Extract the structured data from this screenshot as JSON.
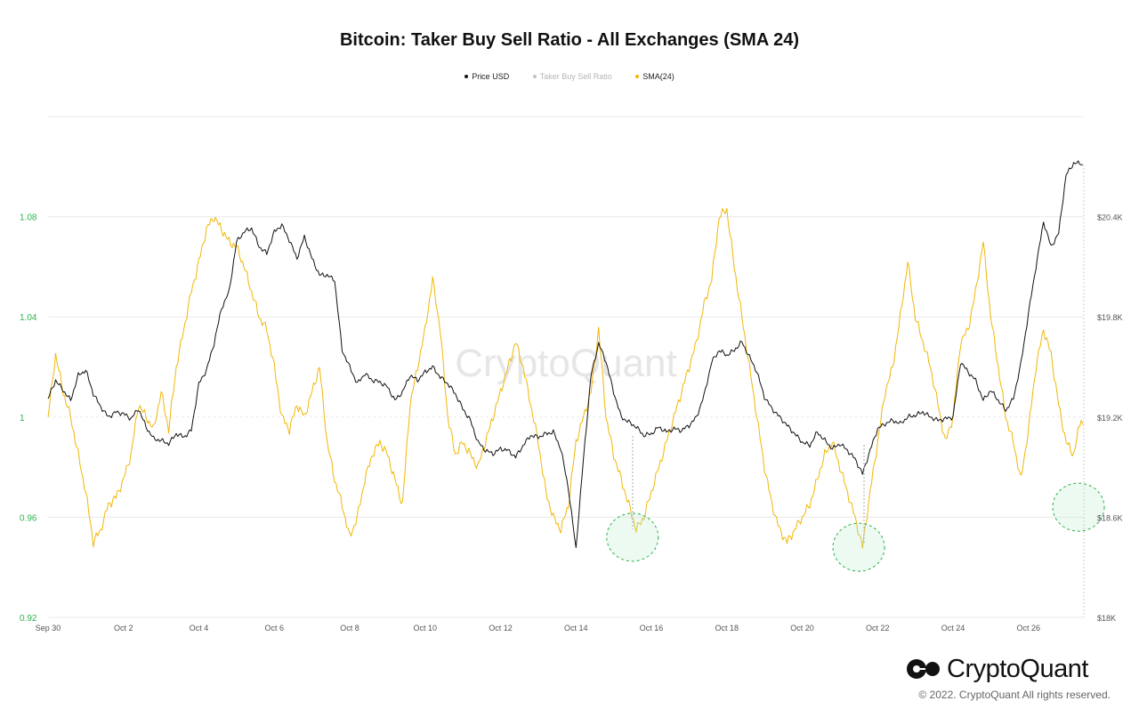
{
  "chart_data": {
    "type": "line",
    "title": "Bitcoin: Taker Buy Sell Ratio - All Exchanges (SMA 24)",
    "x_labels": [
      "Sep 30",
      "Oct 2",
      "Oct 4",
      "Oct 6",
      "Oct 8",
      "Oct 10",
      "Oct 12",
      "Oct 14",
      "Oct 16",
      "Oct 18",
      "Oct 20",
      "Oct 22",
      "Oct 24",
      "Oct 26"
    ],
    "left_axis": {
      "ticks": [
        "0.92",
        "0.96",
        "1",
        "1.04",
        "1.08"
      ],
      "range": [
        0.92,
        1.12
      ],
      "tick_color": "#2bb24c"
    },
    "right_axis": {
      "ticks": [
        "$18K",
        "$18.6K",
        "$19.2K",
        "$19.8K",
        "$20.4K"
      ],
      "range": [
        18000,
        21000
      ]
    },
    "x_range_days": [
      0,
      27.4
    ],
    "legend_position": "top-center",
    "grid": true,
    "series": [
      {
        "name": "Price USD",
        "color": "#111111",
        "axis": "right",
        "points": [
          [
            0,
            19310
          ],
          [
            0.2,
            19420
          ],
          [
            0.4,
            19360
          ],
          [
            0.6,
            19300
          ],
          [
            0.8,
            19450
          ],
          [
            1.0,
            19480
          ],
          [
            1.2,
            19340
          ],
          [
            1.4,
            19260
          ],
          [
            1.6,
            19200
          ],
          [
            1.8,
            19230
          ],
          [
            2.0,
            19220
          ],
          [
            2.2,
            19190
          ],
          [
            2.4,
            19250
          ],
          [
            2.6,
            19140
          ],
          [
            2.8,
            19070
          ],
          [
            3.0,
            19060
          ],
          [
            3.2,
            19040
          ],
          [
            3.4,
            19100
          ],
          [
            3.6,
            19080
          ],
          [
            3.8,
            19120
          ],
          [
            4.0,
            19400
          ],
          [
            4.2,
            19480
          ],
          [
            4.4,
            19640
          ],
          [
            4.6,
            19850
          ],
          [
            4.8,
            19950
          ],
          [
            5.0,
            20250
          ],
          [
            5.2,
            20310
          ],
          [
            5.4,
            20330
          ],
          [
            5.6,
            20220
          ],
          [
            5.8,
            20180
          ],
          [
            6.0,
            20310
          ],
          [
            6.2,
            20350
          ],
          [
            6.4,
            20260
          ],
          [
            6.6,
            20150
          ],
          [
            6.8,
            20280
          ],
          [
            7.0,
            20150
          ],
          [
            7.2,
            20050
          ],
          [
            7.4,
            20050
          ],
          [
            7.6,
            20020
          ],
          [
            7.8,
            19600
          ],
          [
            8.0,
            19500
          ],
          [
            8.2,
            19400
          ],
          [
            8.4,
            19460
          ],
          [
            8.6,
            19420
          ],
          [
            8.8,
            19410
          ],
          [
            9.0,
            19380
          ],
          [
            9.2,
            19300
          ],
          [
            9.4,
            19350
          ],
          [
            9.6,
            19450
          ],
          [
            9.8,
            19420
          ],
          [
            10.0,
            19470
          ],
          [
            10.2,
            19500
          ],
          [
            10.4,
            19440
          ],
          [
            10.6,
            19400
          ],
          [
            10.8,
            19340
          ],
          [
            11.0,
            19250
          ],
          [
            11.2,
            19180
          ],
          [
            11.4,
            19050
          ],
          [
            11.6,
            19000
          ],
          [
            11.8,
            18980
          ],
          [
            12.0,
            19010
          ],
          [
            12.2,
            19000
          ],
          [
            12.4,
            18960
          ],
          [
            12.6,
            19030
          ],
          [
            12.8,
            19090
          ],
          [
            13.0,
            19080
          ],
          [
            13.2,
            19100
          ],
          [
            13.4,
            19110
          ],
          [
            13.6,
            19010
          ],
          [
            13.8,
            18770
          ],
          [
            14.0,
            18410
          ],
          [
            14.2,
            18950
          ],
          [
            14.4,
            19450
          ],
          [
            14.6,
            19640
          ],
          [
            14.8,
            19530
          ],
          [
            15.0,
            19350
          ],
          [
            15.2,
            19200
          ],
          [
            15.4,
            19170
          ],
          [
            15.6,
            19140
          ],
          [
            15.8,
            19090
          ],
          [
            16.0,
            19100
          ],
          [
            16.2,
            19140
          ],
          [
            16.4,
            19110
          ],
          [
            16.6,
            19130
          ],
          [
            16.8,
            19120
          ],
          [
            17.0,
            19150
          ],
          [
            17.2,
            19200
          ],
          [
            17.4,
            19330
          ],
          [
            17.6,
            19530
          ],
          [
            17.8,
            19600
          ],
          [
            18.0,
            19570
          ],
          [
            18.2,
            19600
          ],
          [
            18.4,
            19650
          ],
          [
            18.6,
            19560
          ],
          [
            18.8,
            19470
          ],
          [
            19.0,
            19320
          ],
          [
            19.2,
            19250
          ],
          [
            19.4,
            19200
          ],
          [
            19.6,
            19150
          ],
          [
            19.8,
            19100
          ],
          [
            20.0,
            19050
          ],
          [
            20.2,
            19030
          ],
          [
            20.4,
            19110
          ],
          [
            20.6,
            19060
          ],
          [
            20.8,
            19010
          ],
          [
            21.0,
            19040
          ],
          [
            21.2,
            19000
          ],
          [
            21.4,
            18950
          ],
          [
            21.6,
            18860
          ],
          [
            21.8,
            19000
          ],
          [
            22.0,
            19130
          ],
          [
            22.2,
            19160
          ],
          [
            22.4,
            19180
          ],
          [
            22.6,
            19160
          ],
          [
            22.8,
            19200
          ],
          [
            23.0,
            19210
          ],
          [
            23.2,
            19230
          ],
          [
            23.4,
            19200
          ],
          [
            23.6,
            19180
          ],
          [
            23.8,
            19190
          ],
          [
            24.0,
            19200
          ],
          [
            24.2,
            19530
          ],
          [
            24.4,
            19470
          ],
          [
            24.6,
            19420
          ],
          [
            24.8,
            19300
          ],
          [
            25.0,
            19360
          ],
          [
            25.2,
            19300
          ],
          [
            25.4,
            19240
          ],
          [
            25.6,
            19310
          ],
          [
            25.8,
            19520
          ],
          [
            26.0,
            19820
          ],
          [
            26.2,
            20100
          ],
          [
            26.4,
            20370
          ],
          [
            26.6,
            20220
          ],
          [
            26.8,
            20300
          ],
          [
            27.0,
            20650
          ],
          [
            27.2,
            20720
          ],
          [
            27.4,
            20720
          ],
          [
            27.6,
            20660
          ],
          [
            27.8,
            20700
          ],
          [
            28.0,
            20730
          ],
          [
            28.2,
            20720
          ],
          [
            28.4,
            20680
          ],
          [
            28.6,
            20750
          ],
          [
            28.8,
            20700
          ],
          [
            29.0,
            20700
          ]
        ]
      },
      {
        "name": "Taker Buy Sell Ratio",
        "color": "#c4c4c4",
        "axis": "left",
        "points": []
      },
      {
        "name": "SMA(24)",
        "color": "#f2b705",
        "axis": "left",
        "points": [
          [
            0,
            1.0
          ],
          [
            0.2,
            1.025
          ],
          [
            0.4,
            1.01
          ],
          [
            0.6,
            1.0
          ],
          [
            0.8,
            0.985
          ],
          [
            1.0,
            0.97
          ],
          [
            1.2,
            0.95
          ],
          [
            1.4,
            0.955
          ],
          [
            1.6,
            0.965
          ],
          [
            1.8,
            0.968
          ],
          [
            2.0,
            0.975
          ],
          [
            2.2,
            0.985
          ],
          [
            2.4,
            1.005
          ],
          [
            2.6,
            1.0
          ],
          [
            2.8,
            0.995
          ],
          [
            3.0,
            1.01
          ],
          [
            3.2,
            0.995
          ],
          [
            3.4,
            1.02
          ],
          [
            3.6,
            1.035
          ],
          [
            3.8,
            1.05
          ],
          [
            4.0,
            1.062
          ],
          [
            4.2,
            1.075
          ],
          [
            4.4,
            1.08
          ],
          [
            4.6,
            1.075
          ],
          [
            4.8,
            1.07
          ],
          [
            5.0,
            1.068
          ],
          [
            5.2,
            1.06
          ],
          [
            5.4,
            1.05
          ],
          [
            5.6,
            1.04
          ],
          [
            5.8,
            1.035
          ],
          [
            6.0,
            1.02
          ],
          [
            6.2,
            1.0
          ],
          [
            6.4,
            0.995
          ],
          [
            6.6,
            1.005
          ],
          [
            6.8,
            1.0
          ],
          [
            7.0,
            1.01
          ],
          [
            7.2,
            1.02
          ],
          [
            7.4,
            0.99
          ],
          [
            7.6,
            0.975
          ],
          [
            7.8,
            0.965
          ],
          [
            8.0,
            0.952
          ],
          [
            8.2,
            0.96
          ],
          [
            8.4,
            0.975
          ],
          [
            8.6,
            0.985
          ],
          [
            8.8,
            0.99
          ],
          [
            9.0,
            0.985
          ],
          [
            9.2,
            0.975
          ],
          [
            9.4,
            0.965
          ],
          [
            9.6,
            1.005
          ],
          [
            9.8,
            1.02
          ],
          [
            10.0,
            1.035
          ],
          [
            10.2,
            1.055
          ],
          [
            10.4,
            1.035
          ],
          [
            10.6,
            1.0
          ],
          [
            10.8,
            0.985
          ],
          [
            11.0,
            0.99
          ],
          [
            11.2,
            0.985
          ],
          [
            11.4,
            0.98
          ],
          [
            11.6,
            0.99
          ],
          [
            11.8,
            1.0
          ],
          [
            12.0,
            1.01
          ],
          [
            12.2,
            1.02
          ],
          [
            12.4,
            1.03
          ],
          [
            12.6,
            1.02
          ],
          [
            12.8,
            1.005
          ],
          [
            13.0,
            0.99
          ],
          [
            13.2,
            0.97
          ],
          [
            13.4,
            0.96
          ],
          [
            13.6,
            0.955
          ],
          [
            13.8,
            0.965
          ],
          [
            14.0,
            0.99
          ],
          [
            14.2,
            1.0
          ],
          [
            14.4,
            1.01
          ],
          [
            14.6,
            1.035
          ],
          [
            14.8,
            1.0
          ],
          [
            15.0,
            0.985
          ],
          [
            15.2,
            0.975
          ],
          [
            15.4,
            0.965
          ],
          [
            15.6,
            0.955
          ],
          [
            15.8,
            0.96
          ],
          [
            16.0,
            0.97
          ],
          [
            16.2,
            0.98
          ],
          [
            16.4,
            0.99
          ],
          [
            16.6,
            1.0
          ],
          [
            16.8,
            1.01
          ],
          [
            17.0,
            1.02
          ],
          [
            17.2,
            1.03
          ],
          [
            17.4,
            1.045
          ],
          [
            17.6,
            1.055
          ],
          [
            17.8,
            1.08
          ],
          [
            18.0,
            1.083
          ],
          [
            18.2,
            1.06
          ],
          [
            18.4,
            1.04
          ],
          [
            18.6,
            1.02
          ],
          [
            18.8,
            1.0
          ],
          [
            19.0,
            0.98
          ],
          [
            19.2,
            0.965
          ],
          [
            19.4,
            0.955
          ],
          [
            19.6,
            0.95
          ],
          [
            19.8,
            0.955
          ],
          [
            20.0,
            0.96
          ],
          [
            20.2,
            0.965
          ],
          [
            20.4,
            0.975
          ],
          [
            20.6,
            0.985
          ],
          [
            20.8,
            0.99
          ],
          [
            21.0,
            0.98
          ],
          [
            21.2,
            0.97
          ],
          [
            21.4,
            0.96
          ],
          [
            21.6,
            0.948
          ],
          [
            21.8,
            0.97
          ],
          [
            22.0,
            0.99
          ],
          [
            22.2,
            1.01
          ],
          [
            22.4,
            1.02
          ],
          [
            22.6,
            1.04
          ],
          [
            22.8,
            1.062
          ],
          [
            23.0,
            1.04
          ],
          [
            23.2,
            1.03
          ],
          [
            23.4,
            1.02
          ],
          [
            23.6,
            1.005
          ],
          [
            23.8,
            0.99
          ],
          [
            24.0,
            1.0
          ],
          [
            24.2,
            1.03
          ],
          [
            24.4,
            1.035
          ],
          [
            24.6,
            1.05
          ],
          [
            24.8,
            1.07
          ],
          [
            25.0,
            1.04
          ],
          [
            25.2,
            1.02
          ],
          [
            25.4,
            1.0
          ],
          [
            25.6,
            0.99
          ],
          [
            25.8,
            0.975
          ],
          [
            26.0,
            0.995
          ],
          [
            26.2,
            1.02
          ],
          [
            26.4,
            1.035
          ],
          [
            26.6,
            1.025
          ],
          [
            26.8,
            1.005
          ],
          [
            27.0,
            0.99
          ],
          [
            27.2,
            0.985
          ],
          [
            27.4,
            1.0
          ],
          [
            27.6,
            0.982
          ],
          [
            27.8,
            0.962
          ]
        ]
      }
    ],
    "annotations": [
      {
        "type": "ellipse",
        "x_day": 15.5,
        "y": 0.952
      },
      {
        "type": "ellipse",
        "x_day": 21.5,
        "y": 0.948
      },
      {
        "type": "ellipse",
        "x_day": 27.5,
        "y": 0.964
      }
    ]
  },
  "footer": {
    "logo_text": "CryptoQuant",
    "copyright": "© 2022. CryptoQuant All rights reserved."
  },
  "watermark": "CryptoQuant"
}
